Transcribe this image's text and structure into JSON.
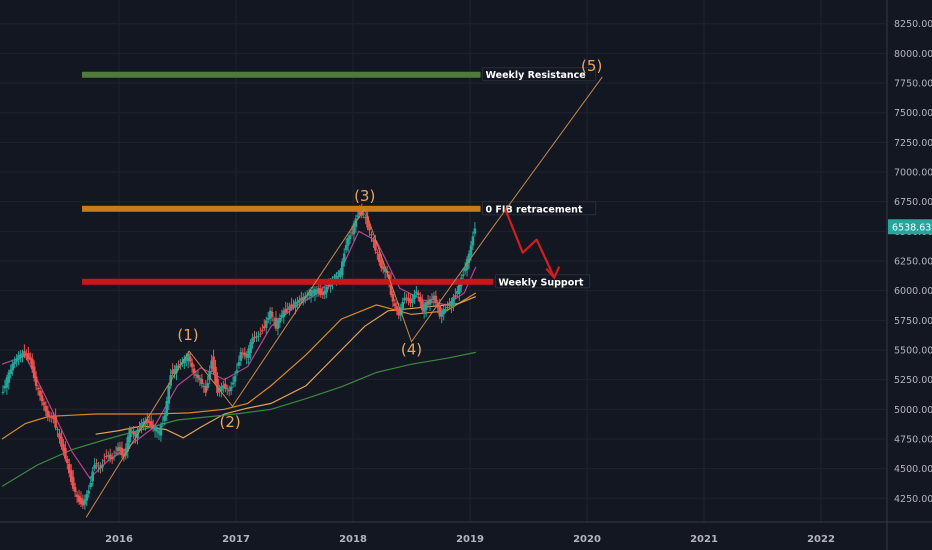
{
  "chart_data": {
    "type": "candlestick",
    "x_axis": {
      "ticks": [
        "2016",
        "2017",
        "2018",
        "2019",
        "2020",
        "2021",
        "2022"
      ]
    },
    "y_axis": {
      "ticks": [
        "4250.00",
        "4500.00",
        "4750.00",
        "5000.00",
        "5250.00",
        "5500.00",
        "5750.00",
        "6000.00",
        "6250.00",
        "6500.00",
        "6750.00",
        "7000.00",
        "7250.00",
        "7500.00",
        "7750.00",
        "8000.00",
        "8250.00"
      ],
      "range": [
        4050,
        8450
      ],
      "side": "right"
    },
    "last_price": {
      "label": "6538.63",
      "value": 6538.63,
      "color": "#26a69a"
    },
    "levels": [
      {
        "label": "Weekly Resistance",
        "value": 7820,
        "color": "#4e7a3b",
        "x_start": 2015.7,
        "x_end": 2019.09
      },
      {
        "label": "0 FIB retracement",
        "value": 6690,
        "color": "#c97a1a",
        "x_start": 2015.7,
        "x_end": 2019.09
      },
      {
        "label": "Weekly Support",
        "value": 6075,
        "color": "#c8161b",
        "x_start": 2015.7,
        "x_end": 2019.2
      }
    ],
    "wave_labels": [
      {
        "label": "(1)",
        "x": 2016.59,
        "y": 5585
      },
      {
        "label": "(2)",
        "x": 2016.95,
        "y": 4850
      },
      {
        "label": "(3)",
        "x": 2018.1,
        "y": 6755
      },
      {
        "label": "(4)",
        "x": 2018.5,
        "y": 5460
      },
      {
        "label": "(5)",
        "x": 2020.04,
        "y": 7850
      }
    ],
    "wave_path": [
      {
        "x": 2015.72,
        "y": 4090
      },
      {
        "x": 2016.6,
        "y": 5490
      },
      {
        "x": 2016.97,
        "y": 5025
      },
      {
        "x": 2018.1,
        "y": 6690
      },
      {
        "x": 2018.5,
        "y": 5570
      },
      {
        "x": 2019.17,
        "y": 6500
      },
      {
        "x": 2020.13,
        "y": 7800
      }
    ],
    "projection_arrow": [
      {
        "x": 2019.3,
        "y": 6690
      },
      {
        "x": 2019.45,
        "y": 6320
      },
      {
        "x": 2019.57,
        "y": 6430
      },
      {
        "x": 2019.72,
        "y": 6110
      }
    ],
    "price_series": [
      {
        "x": 2015.0,
        "y": 5120
      },
      {
        "x": 2015.05,
        "y": 5250
      },
      {
        "x": 2015.1,
        "y": 5380
      },
      {
        "x": 2015.15,
        "y": 5450
      },
      {
        "x": 2015.2,
        "y": 5470
      },
      {
        "x": 2015.25,
        "y": 5420
      },
      {
        "x": 2015.3,
        "y": 5200
      },
      {
        "x": 2015.35,
        "y": 5070
      },
      {
        "x": 2015.4,
        "y": 4940
      },
      {
        "x": 2015.45,
        "y": 4920
      },
      {
        "x": 2015.5,
        "y": 4750
      },
      {
        "x": 2015.55,
        "y": 4600
      },
      {
        "x": 2015.6,
        "y": 4400
      },
      {
        "x": 2015.65,
        "y": 4250
      },
      {
        "x": 2015.7,
        "y": 4200
      },
      {
        "x": 2015.75,
        "y": 4320
      },
      {
        "x": 2015.8,
        "y": 4550
      },
      {
        "x": 2015.85,
        "y": 4500
      },
      {
        "x": 2015.9,
        "y": 4620
      },
      {
        "x": 2015.95,
        "y": 4580
      },
      {
        "x": 2016.0,
        "y": 4680
      },
      {
        "x": 2016.05,
        "y": 4600
      },
      {
        "x": 2016.1,
        "y": 4820
      },
      {
        "x": 2016.15,
        "y": 4780
      },
      {
        "x": 2016.2,
        "y": 4880
      },
      {
        "x": 2016.25,
        "y": 4900
      },
      {
        "x": 2016.3,
        "y": 4850
      },
      {
        "x": 2016.35,
        "y": 4800
      },
      {
        "x": 2016.4,
        "y": 4950
      },
      {
        "x": 2016.45,
        "y": 5300
      },
      {
        "x": 2016.5,
        "y": 5350
      },
      {
        "x": 2016.55,
        "y": 5400
      },
      {
        "x": 2016.6,
        "y": 5450
      },
      {
        "x": 2016.65,
        "y": 5300
      },
      {
        "x": 2016.7,
        "y": 5250
      },
      {
        "x": 2016.75,
        "y": 5150
      },
      {
        "x": 2016.8,
        "y": 5420
      },
      {
        "x": 2016.85,
        "y": 5150
      },
      {
        "x": 2016.9,
        "y": 5200
      },
      {
        "x": 2016.95,
        "y": 5150
      },
      {
        "x": 2017.0,
        "y": 5280
      },
      {
        "x": 2017.05,
        "y": 5480
      },
      {
        "x": 2017.1,
        "y": 5450
      },
      {
        "x": 2017.15,
        "y": 5600
      },
      {
        "x": 2017.2,
        "y": 5620
      },
      {
        "x": 2017.25,
        "y": 5700
      },
      {
        "x": 2017.3,
        "y": 5820
      },
      {
        "x": 2017.35,
        "y": 5700
      },
      {
        "x": 2017.4,
        "y": 5800
      },
      {
        "x": 2017.45,
        "y": 5850
      },
      {
        "x": 2017.5,
        "y": 5880
      },
      {
        "x": 2017.55,
        "y": 5920
      },
      {
        "x": 2017.6,
        "y": 5950
      },
      {
        "x": 2017.65,
        "y": 5990
      },
      {
        "x": 2017.7,
        "y": 6000
      },
      {
        "x": 2017.75,
        "y": 5970
      },
      {
        "x": 2017.8,
        "y": 6050
      },
      {
        "x": 2017.85,
        "y": 6100
      },
      {
        "x": 2017.9,
        "y": 6150
      },
      {
        "x": 2017.95,
        "y": 6400
      },
      {
        "x": 2018.0,
        "y": 6500
      },
      {
        "x": 2018.05,
        "y": 6650
      },
      {
        "x": 2018.1,
        "y": 6650
      },
      {
        "x": 2018.15,
        "y": 6500
      },
      {
        "x": 2018.2,
        "y": 6350
      },
      {
        "x": 2018.25,
        "y": 6200
      },
      {
        "x": 2018.3,
        "y": 6150
      },
      {
        "x": 2018.35,
        "y": 5900
      },
      {
        "x": 2018.4,
        "y": 5800
      },
      {
        "x": 2018.45,
        "y": 5950
      },
      {
        "x": 2018.5,
        "y": 5900
      },
      {
        "x": 2018.55,
        "y": 6000
      },
      {
        "x": 2018.6,
        "y": 5850
      },
      {
        "x": 2018.65,
        "y": 5900
      },
      {
        "x": 2018.7,
        "y": 5950
      },
      {
        "x": 2018.75,
        "y": 5800
      },
      {
        "x": 2018.8,
        "y": 5850
      },
      {
        "x": 2018.85,
        "y": 5900
      },
      {
        "x": 2018.9,
        "y": 6000
      },
      {
        "x": 2018.95,
        "y": 6150
      },
      {
        "x": 2019.0,
        "y": 6300
      },
      {
        "x": 2019.05,
        "y": 6538
      }
    ],
    "moving_averages": [
      {
        "color": "#b7458c",
        "points": [
          {
            "x": 2015.0,
            "y": 5380
          },
          {
            "x": 2015.2,
            "y": 5450
          },
          {
            "x": 2015.4,
            "y": 5050
          },
          {
            "x": 2015.6,
            "y": 4640
          },
          {
            "x": 2015.75,
            "y": 4420
          },
          {
            "x": 2015.9,
            "y": 4560
          },
          {
            "x": 2016.1,
            "y": 4700
          },
          {
            "x": 2016.3,
            "y": 4850
          },
          {
            "x": 2016.5,
            "y": 5200
          },
          {
            "x": 2016.7,
            "y": 5350
          },
          {
            "x": 2016.9,
            "y": 5250
          },
          {
            "x": 2017.1,
            "y": 5360
          },
          {
            "x": 2017.3,
            "y": 5700
          },
          {
            "x": 2017.5,
            "y": 5860
          },
          {
            "x": 2017.7,
            "y": 5980
          },
          {
            "x": 2017.9,
            "y": 6180
          },
          {
            "x": 2018.05,
            "y": 6500
          },
          {
            "x": 2018.2,
            "y": 6420
          },
          {
            "x": 2018.4,
            "y": 6020
          },
          {
            "x": 2018.6,
            "y": 5920
          },
          {
            "x": 2018.8,
            "y": 5880
          },
          {
            "x": 2018.95,
            "y": 5980
          },
          {
            "x": 2019.05,
            "y": 6200
          }
        ]
      },
      {
        "color": "#d98a2b",
        "points": [
          {
            "x": 2015.0,
            "y": 4750
          },
          {
            "x": 2015.2,
            "y": 4880
          },
          {
            "x": 2015.4,
            "y": 4940
          },
          {
            "x": 2015.6,
            "y": 4950
          },
          {
            "x": 2015.8,
            "y": 4960
          },
          {
            "x": 2016.0,
            "y": 4960
          },
          {
            "x": 2016.3,
            "y": 4960
          },
          {
            "x": 2016.6,
            "y": 4970
          },
          {
            "x": 2016.9,
            "y": 5000
          },
          {
            "x": 2017.1,
            "y": 5050
          },
          {
            "x": 2017.3,
            "y": 5200
          },
          {
            "x": 2017.6,
            "y": 5460
          },
          {
            "x": 2017.9,
            "y": 5760
          },
          {
            "x": 2018.2,
            "y": 5880
          },
          {
            "x": 2018.5,
            "y": 5800
          },
          {
            "x": 2018.8,
            "y": 5830
          },
          {
            "x": 2019.05,
            "y": 5980
          }
        ]
      },
      {
        "color": "#e0a35a",
        "points": [
          {
            "x": 2015.8,
            "y": 4790
          },
          {
            "x": 2016.0,
            "y": 4820
          },
          {
            "x": 2016.2,
            "y": 4860
          },
          {
            "x": 2016.4,
            "y": 4830
          },
          {
            "x": 2016.55,
            "y": 4760
          },
          {
            "x": 2016.7,
            "y": 4850
          },
          {
            "x": 2016.9,
            "y": 4960
          },
          {
            "x": 2017.1,
            "y": 5010
          },
          {
            "x": 2017.3,
            "y": 5050
          },
          {
            "x": 2017.6,
            "y": 5200
          },
          {
            "x": 2017.9,
            "y": 5500
          },
          {
            "x": 2018.1,
            "y": 5700
          },
          {
            "x": 2018.3,
            "y": 5830
          },
          {
            "x": 2018.6,
            "y": 5860
          },
          {
            "x": 2018.9,
            "y": 5890
          },
          {
            "x": 2019.05,
            "y": 5950
          }
        ]
      },
      {
        "color": "#3b8a3e",
        "points": [
          {
            "x": 2015.0,
            "y": 4350
          },
          {
            "x": 2015.3,
            "y": 4530
          },
          {
            "x": 2015.6,
            "y": 4660
          },
          {
            "x": 2015.9,
            "y": 4750
          },
          {
            "x": 2016.2,
            "y": 4830
          },
          {
            "x": 2016.5,
            "y": 4910
          },
          {
            "x": 2016.8,
            "y": 4940
          },
          {
            "x": 2017.0,
            "y": 4960
          },
          {
            "x": 2017.3,
            "y": 5000
          },
          {
            "x": 2017.6,
            "y": 5090
          },
          {
            "x": 2017.9,
            "y": 5190
          },
          {
            "x": 2018.2,
            "y": 5310
          },
          {
            "x": 2018.5,
            "y": 5380
          },
          {
            "x": 2018.8,
            "y": 5430
          },
          {
            "x": 2019.05,
            "y": 5480
          }
        ]
      }
    ]
  }
}
